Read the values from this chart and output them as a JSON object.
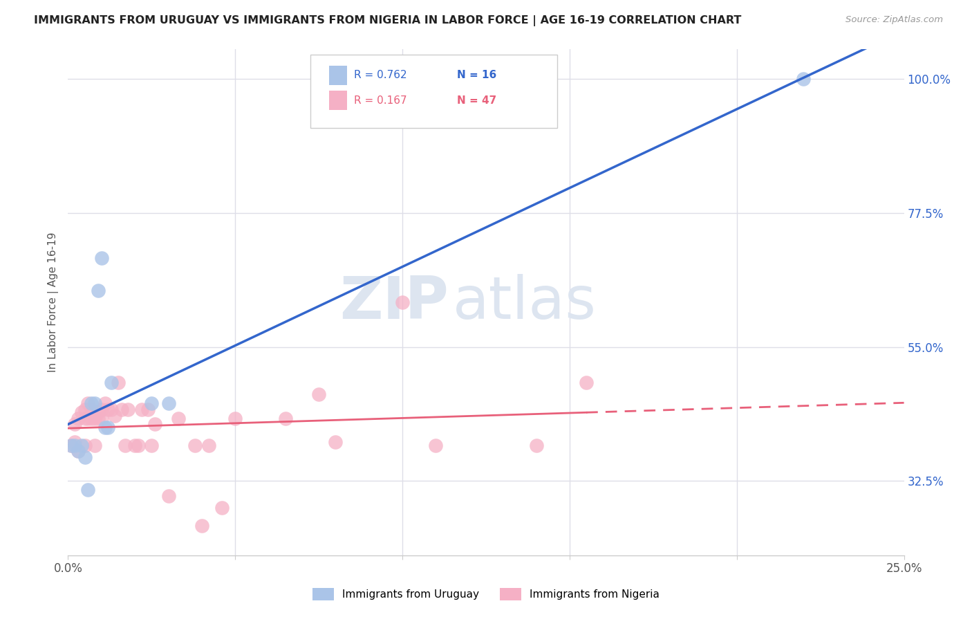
{
  "title": "IMMIGRANTS FROM URUGUAY VS IMMIGRANTS FROM NIGERIA IN LABOR FORCE | AGE 16-19 CORRELATION CHART",
  "source": "Source: ZipAtlas.com",
  "ylabel": "In Labor Force | Age 16-19",
  "xlim": [
    0.0,
    0.25
  ],
  "ylim": [
    0.2,
    1.05
  ],
  "yticks_right": [
    0.325,
    0.55,
    0.775,
    1.0
  ],
  "yticklabels_right": [
    "32.5%",
    "55.0%",
    "77.5%",
    "100.0%"
  ],
  "background_color": "#ffffff",
  "grid_color": "#dedee8",
  "uruguay_color": "#aac4e8",
  "nigeria_color": "#f5b0c5",
  "uruguay_line_color": "#3366cc",
  "nigeria_line_color": "#e8607a",
  "uruguay_R": 0.762,
  "uruguay_N": 16,
  "nigeria_R": 0.167,
  "nigeria_N": 47,
  "legend_label_uruguay": "Immigrants from Uruguay",
  "legend_label_nigeria": "Immigrants from Nigeria",
  "uruguay_x": [
    0.001,
    0.002,
    0.003,
    0.004,
    0.005,
    0.006,
    0.007,
    0.008,
    0.009,
    0.01,
    0.011,
    0.012,
    0.013,
    0.025,
    0.03,
    0.22
  ],
  "uruguay_y": [
    0.385,
    0.385,
    0.375,
    0.385,
    0.365,
    0.31,
    0.455,
    0.455,
    0.645,
    0.7,
    0.415,
    0.415,
    0.49,
    0.455,
    0.455,
    1.0
  ],
  "nigeria_x": [
    0.001,
    0.002,
    0.002,
    0.003,
    0.003,
    0.004,
    0.005,
    0.005,
    0.005,
    0.006,
    0.006,
    0.007,
    0.007,
    0.008,
    0.008,
    0.009,
    0.009,
    0.01,
    0.01,
    0.011,
    0.012,
    0.013,
    0.014,
    0.015,
    0.016,
    0.017,
    0.018,
    0.02,
    0.021,
    0.022,
    0.024,
    0.025,
    0.026,
    0.03,
    0.033,
    0.038,
    0.04,
    0.042,
    0.046,
    0.05,
    0.065,
    0.075,
    0.08,
    0.1,
    0.11,
    0.14,
    0.155
  ],
  "nigeria_y": [
    0.385,
    0.39,
    0.42,
    0.375,
    0.43,
    0.44,
    0.385,
    0.43,
    0.445,
    0.43,
    0.455,
    0.445,
    0.43,
    0.385,
    0.43,
    0.44,
    0.43,
    0.445,
    0.43,
    0.455,
    0.445,
    0.445,
    0.435,
    0.49,
    0.445,
    0.385,
    0.445,
    0.385,
    0.385,
    0.445,
    0.445,
    0.385,
    0.42,
    0.3,
    0.43,
    0.385,
    0.25,
    0.385,
    0.28,
    0.43,
    0.43,
    0.47,
    0.39,
    0.625,
    0.385,
    0.385,
    0.49
  ]
}
